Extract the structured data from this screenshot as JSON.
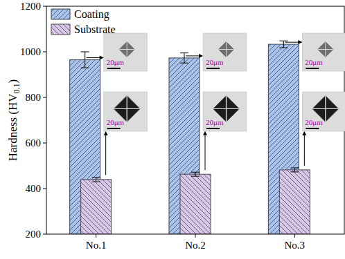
{
  "chart_data": {
    "type": "bar",
    "y_label": {
      "text": "Hardness (HV",
      "subscript": "0.1",
      "suffix": ")"
    },
    "categories": [
      "No.1",
      "No.2",
      "No.3"
    ],
    "series": [
      {
        "name": "Coating",
        "color": "#a9c2ee",
        "values": [
          965,
          973,
          1033
        ],
        "errors": [
          35,
          22,
          15
        ]
      },
      {
        "name": "Substrate",
        "color": "#d8c6e8",
        "values": [
          440,
          463,
          482
        ],
        "errors": [
          10,
          9,
          9
        ]
      }
    ],
    "ylim": [
      200,
      1200
    ],
    "yticks": [
      200,
      400,
      600,
      800,
      1000,
      1200
    ],
    "legend": "upper left",
    "annotations": [
      "20μm",
      "20μm",
      "20μm",
      "20μm",
      "20μm",
      "20μm"
    ]
  }
}
